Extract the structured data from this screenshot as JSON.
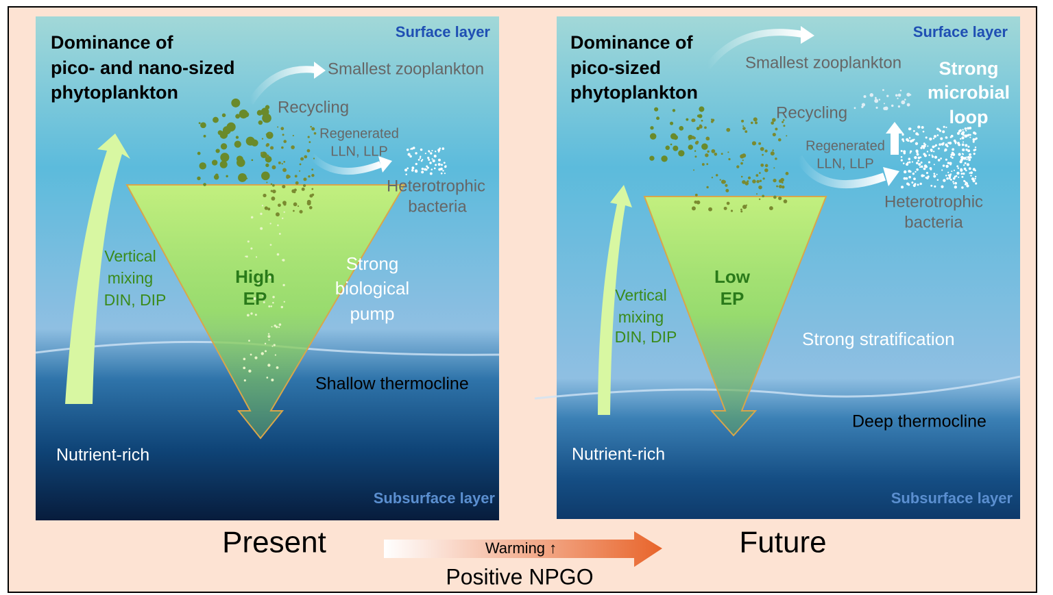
{
  "panels": [
    {
      "surface_layer": "Surface layer",
      "title": [
        "Dominance of",
        "pico- and nano-sized",
        "phytoplankton"
      ],
      "zooplankton": "Smallest zooplankton",
      "recycling": "Recycling",
      "regenerated": [
        "Regenerated",
        "LLN, LLP"
      ],
      "bacteria": [
        "Heterotrophic",
        "bacteria"
      ],
      "mixing": [
        "Vertical",
        "mixing",
        "DIN, DIP"
      ],
      "export": [
        "High",
        "EP"
      ],
      "pump": [
        "Strong",
        "biological",
        "pump"
      ],
      "thermocline": "Shallow thermocline",
      "nutrients": "Nutrient-rich",
      "subsurface_layer": "Subsurface layer"
    },
    {
      "surface_layer": "Surface layer",
      "title": [
        "Dominance of",
        "pico-sized",
        "phytoplankton"
      ],
      "zooplankton": "Smallest  zooplankton",
      "microbial_loop": [
        "Strong",
        "microbial",
        "loop"
      ],
      "recycling": "Recycling",
      "regenerated": [
        "Regenerated",
        "LLN, LLP"
      ],
      "bacteria": [
        "Heterotrophic",
        "bacteria"
      ],
      "mixing": [
        "Vertical",
        "mixing",
        "DIN, DIP"
      ],
      "export": [
        "Low",
        "EP"
      ],
      "stratification": "Strong stratification",
      "thermocline": "Deep thermocline",
      "nutrients": "Nutrient-rich",
      "subsurface_layer": "Subsurface layer"
    }
  ],
  "transition": {
    "from": "Present",
    "to": "Future",
    "arrow_label": "Warming ↑",
    "driver": "Positive NPGO"
  }
}
